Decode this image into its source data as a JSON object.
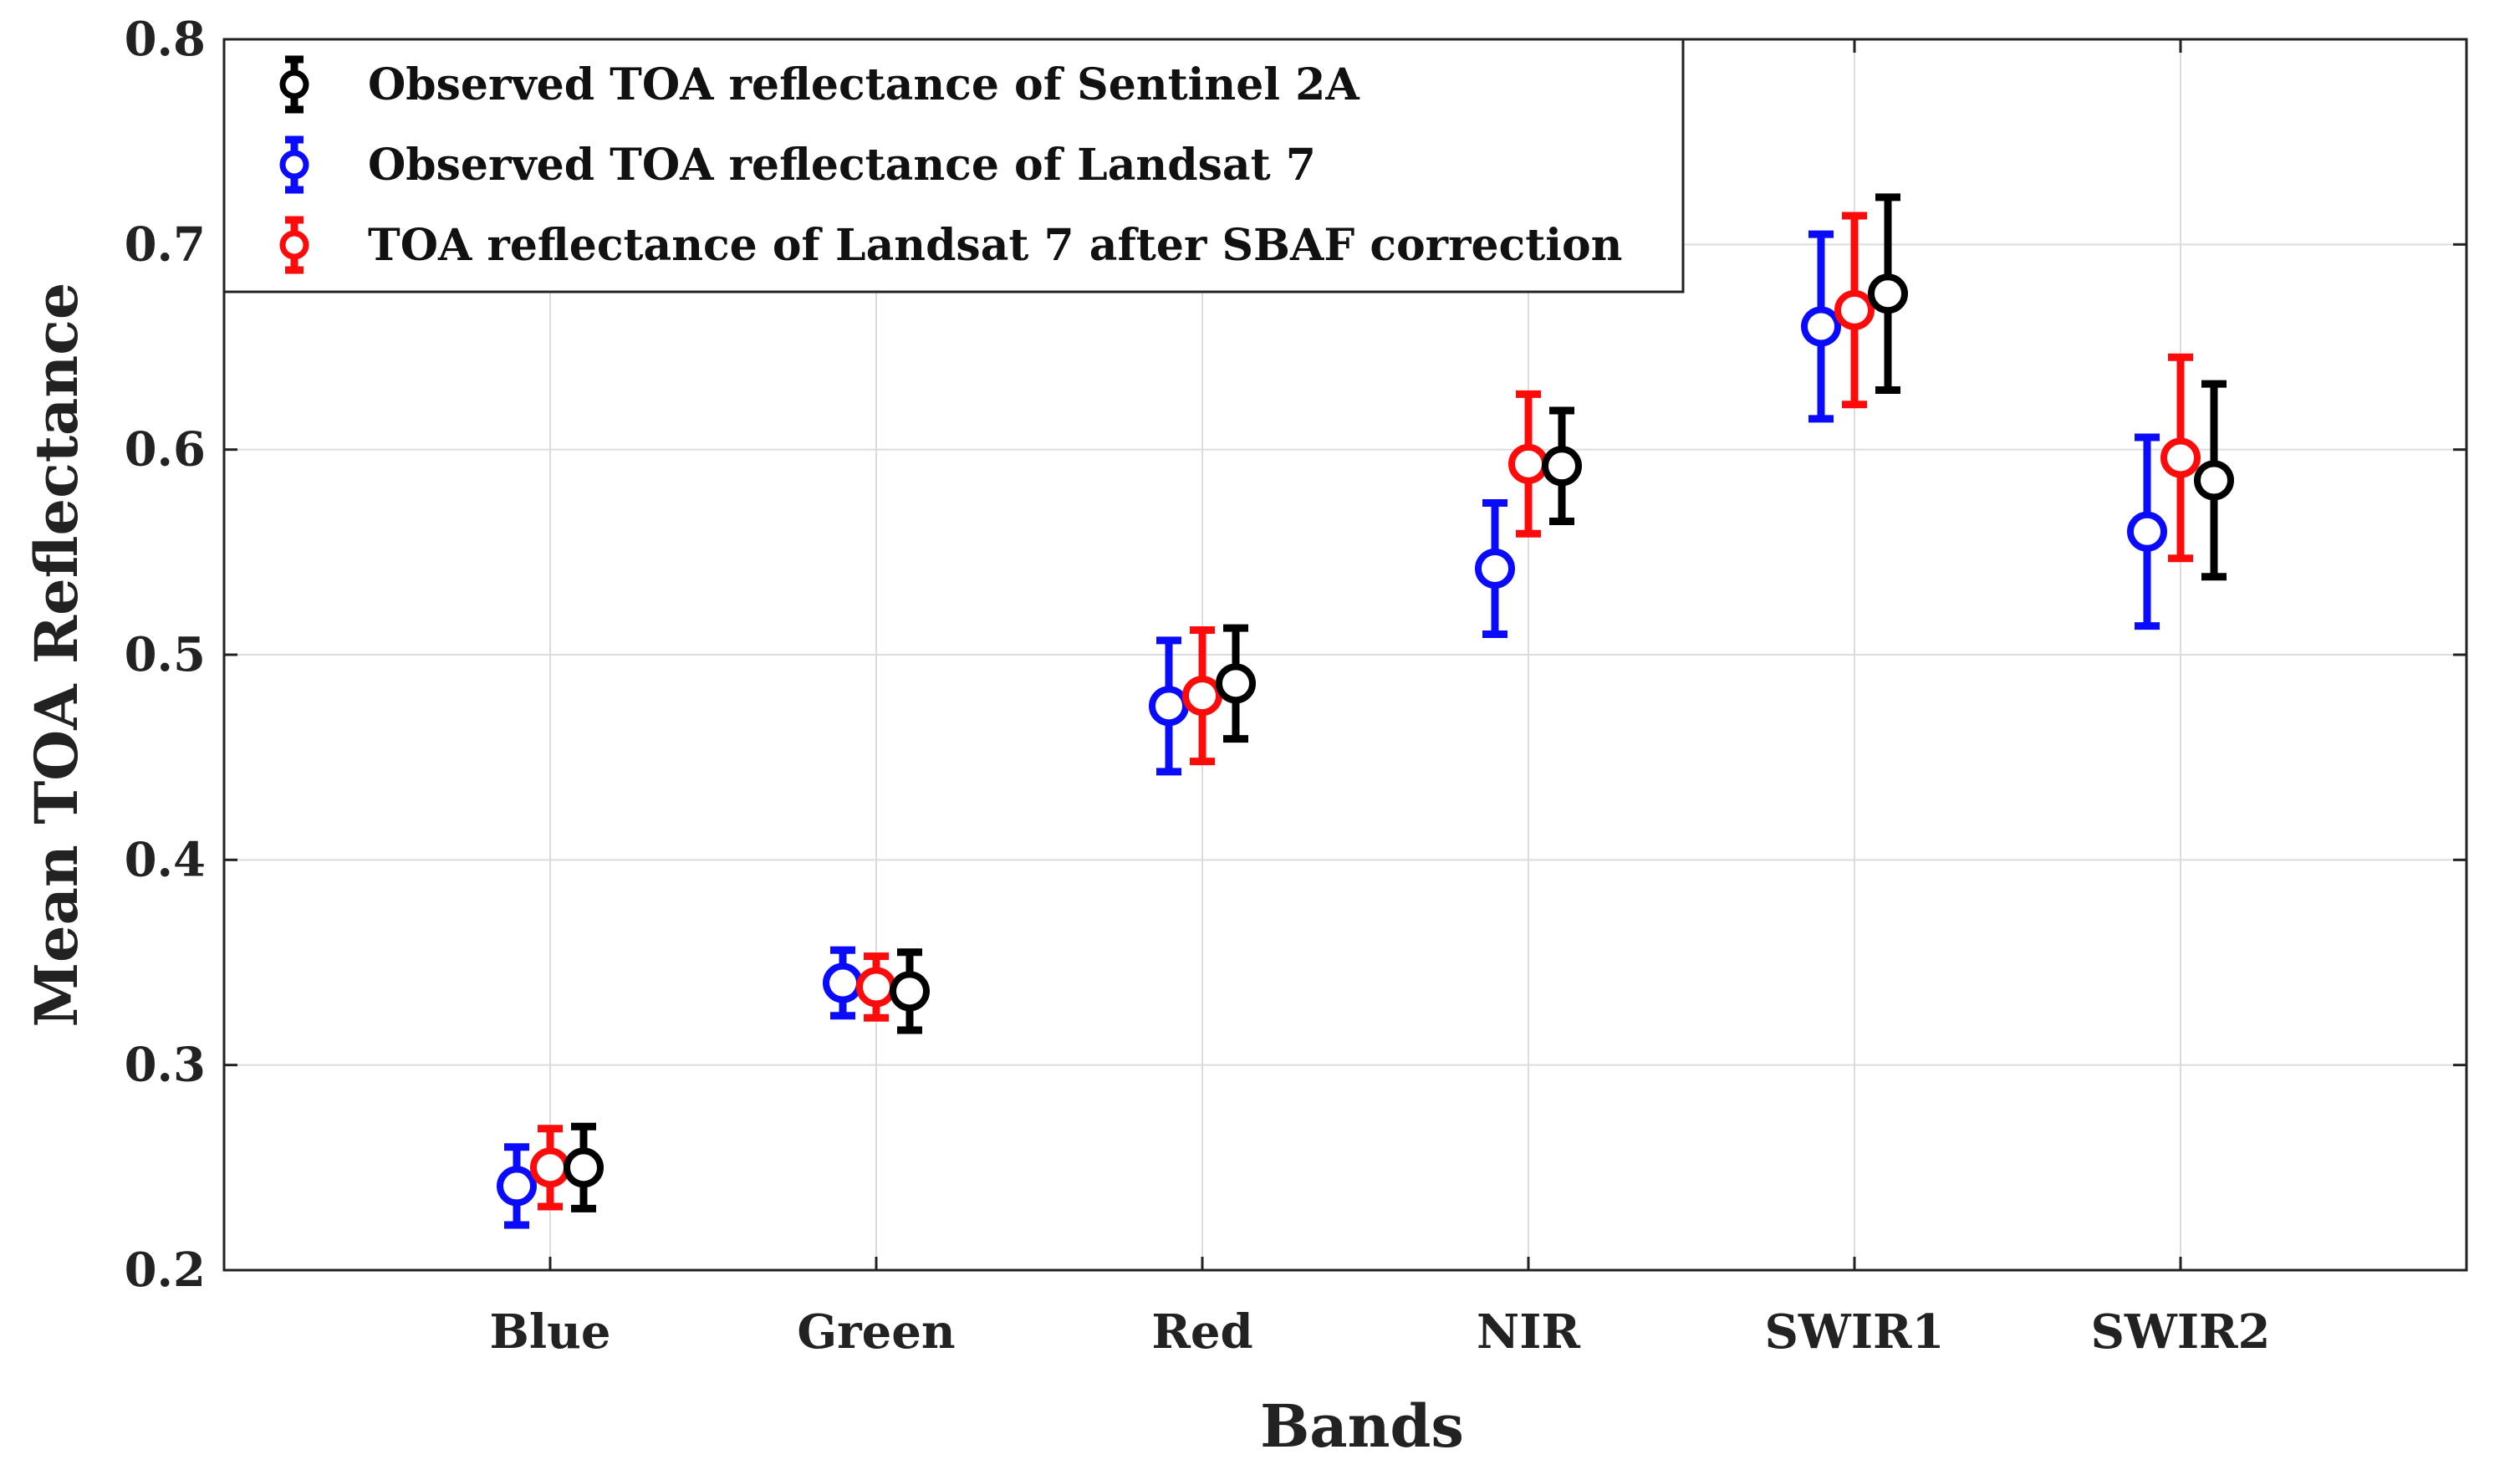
{
  "chart_data": {
    "type": "scatter",
    "subtype": "errorbar",
    "title": "",
    "xlabel": "Bands",
    "ylabel": "Mean TOA Reflectance",
    "categories": [
      "Blue",
      "Green",
      "Red",
      "NIR",
      "SWIR1",
      "SWIR2"
    ],
    "ylim": [
      0.2,
      0.8
    ],
    "yticks": [
      "0.2",
      "0.3",
      "0.4",
      "0.5",
      "0.6",
      "0.7",
      "0.8"
    ],
    "grid": true,
    "legend_position": "top-left",
    "series": [
      {
        "name": "Observed TOA reflectance of Sentinel 2A",
        "color": "#000000",
        "values": [
          0.25,
          0.336,
          0.486,
          0.592,
          0.676,
          0.585
        ],
        "errors": [
          0.02,
          0.019,
          0.027,
          0.027,
          0.047,
          0.047
        ]
      },
      {
        "name": "Observed TOA reflectance of Landsat 7",
        "color": "#0a0aff",
        "values": [
          0.241,
          0.34,
          0.475,
          0.542,
          0.66,
          0.56
        ],
        "errors": [
          0.019,
          0.016,
          0.032,
          0.032,
          0.045,
          0.046
        ]
      },
      {
        "name": "TOA reflectance of Landsat 7 after SBAF correction",
        "color": "#ff0a0a",
        "values": [
          0.25,
          0.338,
          0.48,
          0.593,
          0.668,
          0.596
        ],
        "errors": [
          0.019,
          0.015,
          0.032,
          0.034,
          0.046,
          0.049
        ]
      }
    ]
  }
}
